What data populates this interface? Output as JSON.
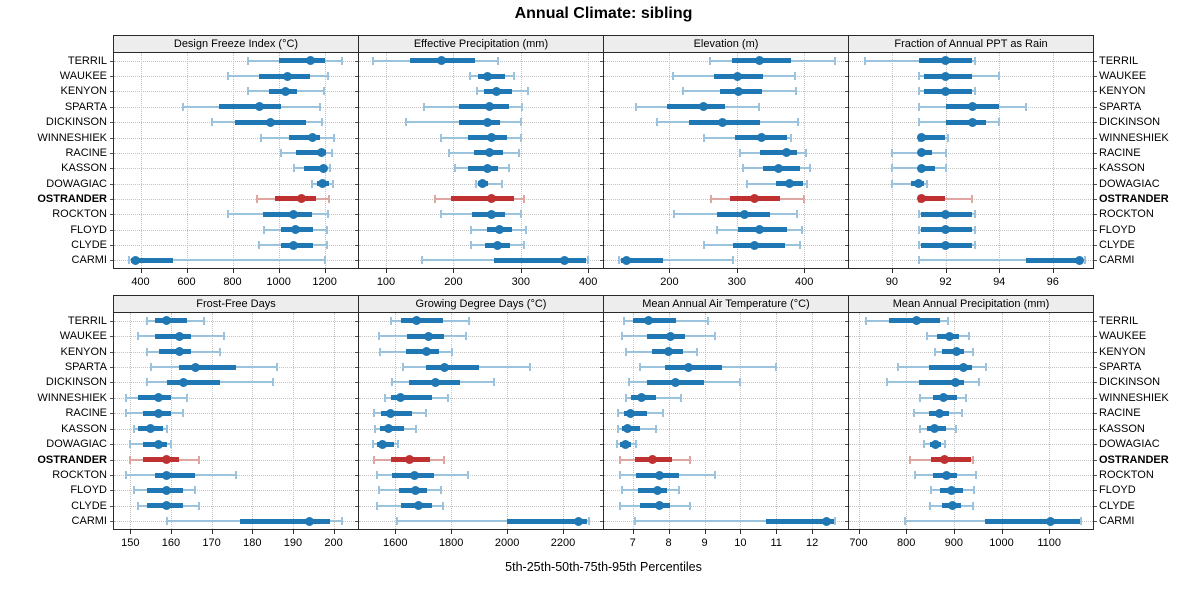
{
  "title": "Annual Climate: sibling",
  "caption": "5th-25th-50th-75th-95th Percentiles",
  "colors": {
    "series_blue": "#1f77b4",
    "series_blue_light": "#9cc3de",
    "highlight_red": "#bf3030",
    "highlight_red_light": "#dfa5a0",
    "grid": "#c3c3c3",
    "strip_bg": "#ededed",
    "panel_border": "#2b2b2b"
  },
  "chart_data": {
    "type": "scatter",
    "subtype": "percentile-interval (5th-25th-50th-75th-95th), trellis 2x4",
    "grid": true,
    "highlight": "OSTRANDER",
    "categories": [
      "TERRIL",
      "WAUKEE",
      "KENYON",
      "SPARTA",
      "DICKINSON",
      "WINNESHIEK",
      "RACINE",
      "KASSON",
      "DOWAGIAC",
      "OSTRANDER",
      "ROCKTON",
      "FLOYD",
      "CLYDE",
      "CARMI"
    ],
    "panels": [
      {
        "title": "Design Freeze Index (°C)",
        "xlim": [
          285,
          1345
        ],
        "xticks": [
          400,
          600,
          800,
          1000,
          1200
        ],
        "percentiles": [
          [
            865,
            1000,
            1140,
            1200,
            1275
          ],
          [
            780,
            915,
            1040,
            1135,
            1215
          ],
          [
            865,
            960,
            1030,
            1080,
            1195
          ],
          [
            585,
            740,
            915,
            1010,
            1180
          ],
          [
            710,
            810,
            965,
            1120,
            1190
          ],
          [
            925,
            1045,
            1145,
            1180,
            1240
          ],
          [
            1010,
            1075,
            1185,
            1205,
            1230
          ],
          [
            1065,
            1110,
            1195,
            1210,
            1225
          ],
          [
            1145,
            1165,
            1190,
            1220,
            1235
          ],
          [
            905,
            985,
            1100,
            1165,
            1220
          ],
          [
            780,
            930,
            1065,
            1145,
            1215
          ],
          [
            935,
            1010,
            1075,
            1150,
            1210
          ],
          [
            915,
            1010,
            1065,
            1150,
            1210
          ],
          [
            350,
            360,
            377,
            540,
            1200
          ]
        ]
      },
      {
        "title": "Effective Precipitation (mm)",
        "xlim": [
          60,
          422
        ],
        "xticks": [
          100,
          200,
          300,
          400
        ],
        "percentiles": [
          [
            80,
            135,
            182,
            232,
            266
          ],
          [
            225,
            236,
            251,
            277,
            290
          ],
          [
            235,
            246,
            264,
            287,
            310
          ],
          [
            156,
            208,
            254,
            282,
            302
          ],
          [
            130,
            208,
            250,
            269,
            301
          ],
          [
            182,
            222,
            257,
            279,
            301
          ],
          [
            194,
            230,
            254,
            274,
            298
          ],
          [
            203,
            222,
            250,
            267,
            283
          ],
          [
            233,
            237,
            243,
            252,
            272
          ],
          [
            173,
            196,
            256,
            290,
            305
          ],
          [
            182,
            227,
            256,
            277,
            301
          ],
          [
            226,
            250,
            268,
            287,
            307
          ],
          [
            226,
            247,
            266,
            284,
            305
          ],
          [
            153,
            260,
            365,
            397,
            400
          ]
        ]
      },
      {
        "title": "Elevation (m)",
        "xlim": [
          103,
          465
        ],
        "xticks": [
          200,
          300,
          400
        ],
        "percentiles": [
          [
            260,
            293,
            334,
            381,
            445
          ],
          [
            206,
            266,
            301,
            339,
            386
          ],
          [
            220,
            275,
            302,
            338,
            388
          ],
          [
            150,
            197,
            251,
            283,
            333
          ],
          [
            182,
            229,
            279,
            334,
            391
          ],
          [
            252,
            298,
            336,
            374,
            381
          ],
          [
            305,
            334,
            373,
            390,
            403
          ],
          [
            309,
            339,
            362,
            394,
            409
          ],
          [
            315,
            358,
            378,
            398,
            404
          ],
          [
            261,
            290,
            326,
            364,
            399
          ],
          [
            207,
            270,
            311,
            349,
            390
          ],
          [
            270,
            302,
            333,
            374,
            397
          ],
          [
            251,
            295,
            326,
            371,
            393
          ],
          [
            125,
            128,
            137,
            190,
            295
          ]
        ]
      },
      {
        "title": "Fraction of Annual PPT as Rain",
        "xlim": [
          88.4,
          97.5
        ],
        "xticks": [
          90,
          92,
          94,
          96
        ],
        "percentiles": [
          [
            89,
            91,
            92,
            93,
            93.1
          ],
          [
            91,
            91.2,
            92,
            93,
            94
          ],
          [
            91,
            91.2,
            92,
            93,
            93.1
          ],
          [
            91,
            92,
            93,
            94,
            95
          ],
          [
            91,
            92,
            93,
            93.5,
            94
          ],
          [
            91,
            91,
            91.1,
            92,
            92.1
          ],
          [
            90,
            91,
            91.1,
            91.5,
            92
          ],
          [
            90,
            91,
            91.1,
            91.6,
            92
          ],
          [
            90,
            90.7,
            91,
            91.2,
            91.3
          ],
          [
            91,
            91,
            91.1,
            92,
            93
          ],
          [
            91,
            91.1,
            92,
            93,
            93.1
          ],
          [
            91,
            91.1,
            92,
            93,
            93.1
          ],
          [
            91,
            91.1,
            92,
            93,
            93.1
          ],
          [
            91,
            95,
            97,
            97,
            97.2
          ]
        ]
      },
      {
        "title": "Frost-Free Days",
        "xlim": [
          146,
          206
        ],
        "xticks": [
          150,
          160,
          170,
          180,
          190,
          200
        ],
        "percentiles": [
          [
            154,
            156,
            159,
            164,
            168
          ],
          [
            152,
            156,
            162,
            165,
            173
          ],
          [
            154,
            157,
            162,
            165,
            172
          ],
          [
            155,
            162,
            166,
            176,
            186
          ],
          [
            154,
            159,
            163,
            172,
            185
          ],
          [
            149,
            152,
            157,
            160,
            164
          ],
          [
            149,
            153,
            157,
            160,
            163
          ],
          [
            151,
            152,
            155,
            158,
            159
          ],
          [
            150,
            153,
            157,
            159,
            160
          ],
          [
            150,
            153,
            159,
            162,
            167
          ],
          [
            149,
            156,
            159,
            166,
            176
          ],
          [
            151,
            154,
            159,
            163,
            166
          ],
          [
            152,
            154,
            159,
            163,
            167
          ],
          [
            159,
            177,
            194,
            199,
            202
          ]
        ]
      },
      {
        "title": "Growing Degree Days (°C)",
        "xlim": [
          1470,
          2343
        ],
        "xticks": [
          1600,
          1800,
          2000,
          2200
        ],
        "percentiles": [
          [
            1585,
            1620,
            1675,
            1770,
            1865
          ],
          [
            1540,
            1643,
            1720,
            1775,
            1852
          ],
          [
            1544,
            1637,
            1710,
            1755,
            1802
          ],
          [
            1627,
            1708,
            1776,
            1900,
            2080
          ],
          [
            1589,
            1649,
            1743,
            1832,
            1954
          ],
          [
            1563,
            1583,
            1619,
            1731,
            1788
          ],
          [
            1524,
            1548,
            1583,
            1660,
            1708
          ],
          [
            1528,
            1544,
            1575,
            1631,
            1675
          ],
          [
            1521,
            1533,
            1554,
            1595,
            1611
          ],
          [
            1524,
            1583,
            1651,
            1725,
            1773
          ],
          [
            1533,
            1589,
            1670,
            1737,
            1859
          ],
          [
            1540,
            1613,
            1672,
            1714,
            1764
          ],
          [
            1533,
            1619,
            1682,
            1731,
            1769
          ],
          [
            1607,
            2000,
            2254,
            2285,
            2293
          ]
        ]
      },
      {
        "title": "Mean Annual Air Temperature (°C)",
        "xlim": [
          6.2,
          13.0
        ],
        "xticks": [
          7,
          8,
          9,
          10,
          11,
          12
        ],
        "percentiles": [
          [
            6.75,
            7.0,
            7.45,
            8.2,
            9.1
          ],
          [
            6.7,
            7.4,
            8.05,
            8.45,
            9.3
          ],
          [
            6.8,
            7.55,
            8.0,
            8.4,
            8.8
          ],
          [
            7.2,
            7.9,
            8.55,
            9.5,
            11.0
          ],
          [
            6.9,
            7.4,
            8.2,
            9.0,
            10.0
          ],
          [
            6.8,
            6.95,
            7.25,
            7.65,
            8.35
          ],
          [
            6.6,
            6.75,
            6.95,
            7.4,
            7.85
          ],
          [
            6.6,
            6.7,
            6.85,
            7.2,
            7.65
          ],
          [
            6.55,
            6.65,
            6.8,
            6.95,
            7.1
          ],
          [
            6.65,
            7.05,
            7.55,
            8.1,
            8.6
          ],
          [
            6.65,
            7.1,
            7.75,
            8.3,
            9.3
          ],
          [
            6.7,
            7.15,
            7.7,
            7.95,
            8.3
          ],
          [
            6.65,
            7.2,
            7.75,
            8.05,
            8.6
          ],
          [
            7.05,
            10.7,
            12.4,
            12.6,
            12.65
          ]
        ]
      },
      {
        "title": "Mean Annual Precipitation (mm)",
        "xlim": [
          680,
          1192
        ],
        "xticks": [
          700,
          800,
          900,
          1000,
          1100
        ],
        "percentiles": [
          [
            715,
            763,
            822,
            870,
            888
          ],
          [
            844,
            865,
            891,
            910,
            931
          ],
          [
            860,
            876,
            905,
            921,
            940
          ],
          [
            782,
            847,
            921,
            938,
            967
          ],
          [
            759,
            826,
            903,
            921,
            952
          ],
          [
            828,
            856,
            879,
            907,
            926
          ],
          [
            817,
            847,
            870,
            890,
            916
          ],
          [
            828,
            844,
            860,
            883,
            905
          ],
          [
            838,
            849,
            862,
            874,
            881
          ],
          [
            808,
            851,
            881,
            935,
            940
          ],
          [
            819,
            856,
            884,
            907,
            947
          ],
          [
            853,
            870,
            895,
            919,
            942
          ],
          [
            849,
            874,
            897,
            914,
            940
          ],
          [
            798,
            966,
            1103,
            1164,
            1167
          ]
        ]
      }
    ]
  }
}
